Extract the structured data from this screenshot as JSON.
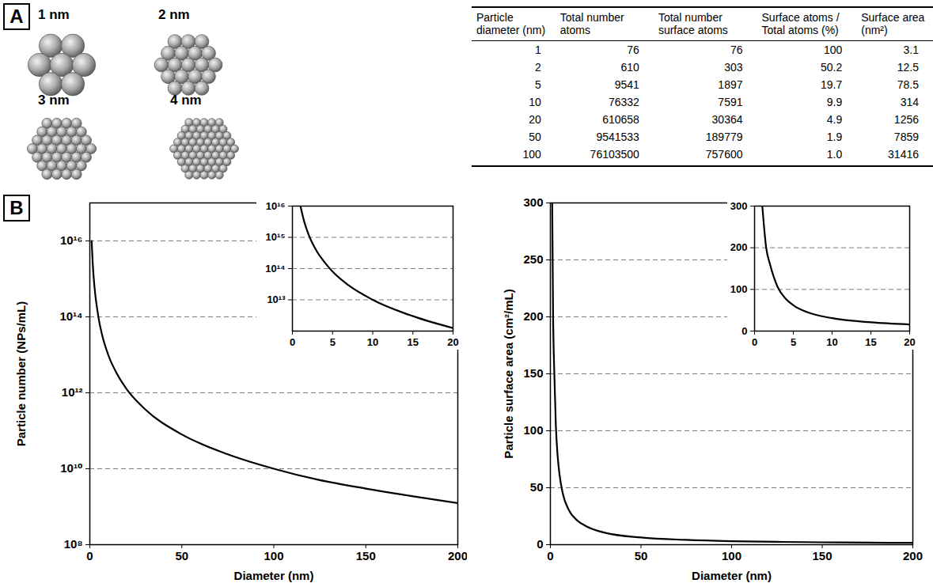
{
  "panel_labels": [
    "A",
    "B"
  ],
  "illustration_labels": [
    "1 nm",
    "2 nm",
    "3 nm",
    "4 nm"
  ],
  "table": {
    "columns": [
      "Particle diameter (nm)",
      "Total number atoms",
      "Total number surface atoms",
      "Surface atoms / Total atoms (%)",
      "Surface area (nm²)"
    ],
    "rows": [
      [
        "1",
        "76",
        "76",
        "100",
        "3.1"
      ],
      [
        "2",
        "610",
        "303",
        "50.2",
        "12.5"
      ],
      [
        "5",
        "9541",
        "1897",
        "19.7",
        "78.5"
      ],
      [
        "10",
        "76332",
        "7591",
        "9.9",
        "314"
      ],
      [
        "20",
        "610658",
        "30364",
        "4.9",
        "1256"
      ],
      [
        "50",
        "9541533",
        "189779",
        "1.9",
        "7859"
      ],
      [
        "100",
        "76103500",
        "757600",
        "1.0",
        "31416"
      ]
    ]
  },
  "chart_data": [
    {
      "type": "line",
      "x_label": "Diameter (nm)",
      "y_label": "Particle number (NPs/mL)",
      "x": [
        1,
        1.5,
        2,
        3,
        4,
        5,
        7,
        10,
        15,
        20,
        30,
        50,
        75,
        100,
        125,
        150,
        175,
        200
      ],
      "series": [
        {
          "color": "#000000",
          "values": [
            1e+16,
            3000000000000000.0,
            1250000000000000.0,
            370000000000000.0,
            160000000000000.0,
            80000000000000.0,
            29000000000000.0,
            10000000000000.0,
            3000000000000.0,
            1250000000000.0,
            370000000000.0,
            80000000000.0,
            24000000000.0,
            10000000000.0,
            5000000000.0,
            3000000000.0,
            1900000000.0,
            1250000000.0
          ]
        }
      ],
      "xlim": [
        0,
        200
      ],
      "xticks": [
        0,
        50,
        100,
        150,
        200
      ],
      "ylim": [
        100000000.0,
        1e+17
      ],
      "yticks": [
        {
          "value": 100000000.0,
          "label": "10⁸"
        },
        {
          "value": 10000000000.0,
          "label": "10¹⁰"
        },
        {
          "value": 1000000000000.0,
          "label": "10¹²"
        },
        {
          "value": 100000000000000.0,
          "label": "10¹⁴"
        },
        {
          "value": 1e+16,
          "label": "10¹⁶"
        }
      ],
      "log": "y",
      "grid": true
    },
    {
      "type": "line",
      "x": [
        1,
        1.5,
        2,
        3,
        4,
        5,
        7,
        10,
        15,
        20
      ],
      "series": [
        {
          "color": "#000000",
          "values": [
            1e+16,
            3000000000000000.0,
            1250000000000000.0,
            370000000000000.0,
            160000000000000.0,
            80000000000000.0,
            29000000000000.0,
            10000000000000.0,
            3000000000000.0,
            1250000000000.0
          ]
        }
      ],
      "xlim": [
        0,
        20
      ],
      "xticks": [
        0,
        5,
        10,
        15,
        20
      ],
      "ylim": [
        1000000000000.0,
        1e+16
      ],
      "yticks": [
        {
          "value": 10000000000000.0,
          "label": "10¹³"
        },
        {
          "value": 100000000000000.0,
          "label": "10¹⁴"
        },
        {
          "value": 1000000000000000.0,
          "label": "10¹⁵"
        },
        {
          "value": 1e+16,
          "label": "10¹⁶"
        }
      ],
      "log": "y",
      "grid": true
    },
    {
      "type": "line",
      "x_label": "Diameter (nm)",
      "y_label": "Particle surface area (cm²/mL)",
      "x": [
        1,
        1.5,
        2,
        3,
        4,
        5,
        7,
        10,
        15,
        20,
        30,
        50,
        75,
        100,
        125,
        150,
        175,
        200
      ],
      "series": [
        {
          "color": "#000000",
          "values": [
            300,
            200,
            160,
            105,
            78,
            62,
            44,
            31,
            21,
            16,
            10.5,
            6.3,
            4.2,
            3.1,
            2.5,
            2.1,
            1.8,
            1.6
          ]
        }
      ],
      "xlim": [
        0,
        200
      ],
      "xticks": [
        0,
        50,
        100,
        150,
        200
      ],
      "ylim": [
        0,
        300
      ],
      "yticks": [
        0,
        50,
        100,
        150,
        200,
        250,
        300
      ],
      "grid": true
    },
    {
      "type": "line",
      "x": [
        1,
        1.5,
        2,
        3,
        4,
        5,
        7,
        10,
        15,
        20
      ],
      "series": [
        {
          "color": "#000000",
          "values": [
            300,
            200,
            160,
            105,
            78,
            62,
            44,
            31,
            21,
            16
          ]
        }
      ],
      "xlim": [
        0,
        20
      ],
      "xticks": [
        0,
        5,
        10,
        15,
        20
      ],
      "ylim": [
        0,
        300
      ],
      "yticks": [
        0,
        100,
        200,
        300
      ],
      "grid": true
    }
  ]
}
